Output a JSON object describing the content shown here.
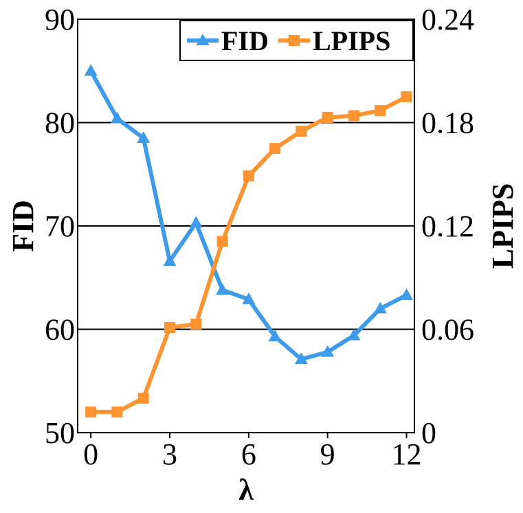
{
  "chart_data": {
    "type": "line",
    "xlabel": "λ",
    "ylabel_left": "FID",
    "ylabel_right": "LPIPS",
    "xlim": [
      -0.5,
      12.3
    ],
    "xticks": [
      0,
      3,
      6,
      9,
      12
    ],
    "ylim_left": [
      50,
      90
    ],
    "yticks_left": [
      50,
      60,
      70,
      80,
      90
    ],
    "ylim_right": [
      0,
      0.24
    ],
    "yticks_right": [
      "0",
      "0.06",
      "0.12",
      "0.18",
      "0.24"
    ],
    "grid": "horizontal",
    "legend": "top-right",
    "x": [
      0,
      1,
      2,
      3,
      4,
      5,
      6,
      7,
      8,
      9,
      10,
      11,
      12
    ],
    "series": [
      {
        "name": "FID",
        "axis": "left",
        "color": "#3d9be9",
        "marker": "triangle",
        "values": [
          85.0,
          80.4,
          78.5,
          66.6,
          70.3,
          63.8,
          62.9,
          59.3,
          57.1,
          57.8,
          59.4,
          62.0,
          63.3
        ]
      },
      {
        "name": "LPIPS",
        "axis": "right",
        "color": "#fb9431",
        "marker": "square",
        "values": [
          0.012,
          0.012,
          0.02,
          0.061,
          0.063,
          0.111,
          0.149,
          0.165,
          0.175,
          0.183,
          0.184,
          0.187,
          0.195
        ]
      }
    ]
  }
}
